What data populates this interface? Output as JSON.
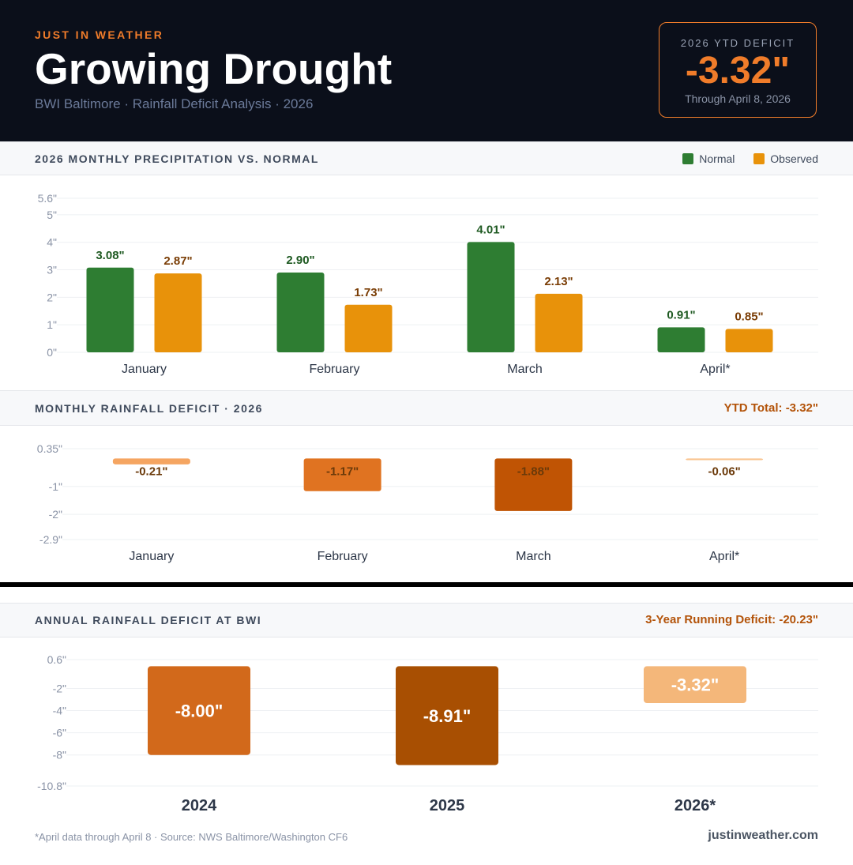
{
  "header": {
    "brand": "JUST IN WEATHER",
    "title": "Growing Drought",
    "subtitle": "BWI Baltimore · Rainfall Deficit Analysis · 2026",
    "ytd": {
      "label": "2026 YTD DEFICIT",
      "value": "-3.32\"",
      "sub": "Through April 8, 2026"
    }
  },
  "sections": {
    "monthly_precip": {
      "title": "2026 MONTHLY PRECIPITATION VS. NORMAL",
      "legend": [
        "Normal",
        "Observed"
      ]
    },
    "monthly_deficit": {
      "title": "MONTHLY RAINFALL DEFICIT · 2026",
      "right": "YTD Total: -3.32\""
    },
    "annual_deficit": {
      "title": "ANNUAL RAINFALL DEFICIT AT BWI",
      "right": "3-Year Running Deficit: -20.23\""
    }
  },
  "colors": {
    "normal": "#2e7d32",
    "observed": "#e8920a",
    "accent": "#f07c2a",
    "deficit_light": "#f5a561",
    "deficit_mid": "#e07321",
    "deficit_dark": "#c05404",
    "deficit_faint": "#f9c48f",
    "annual_2024": "#d2691b",
    "annual_2025": "#a84f02",
    "annual_2026": "#f4b77a"
  },
  "chart_data": [
    {
      "type": "bar",
      "title": "2026 MONTHLY PRECIPITATION VS. NORMAL",
      "categories": [
        "January",
        "February",
        "March",
        "April*"
      ],
      "series": [
        {
          "name": "Normal",
          "values": [
            3.08,
            2.9,
            4.01,
            0.91
          ],
          "labels": [
            "3.08\"",
            "2.90\"",
            "4.01\"",
            "0.91\""
          ]
        },
        {
          "name": "Observed",
          "values": [
            2.87,
            1.73,
            2.13,
            0.85
          ],
          "labels": [
            "2.87\"",
            "1.73\"",
            "2.13\"",
            "0.85\""
          ]
        }
      ],
      "yticks": [
        0,
        1,
        2,
        3,
        4,
        5,
        5.6
      ],
      "ytick_labels": [
        "0\"",
        "1\"",
        "2\"",
        "3\"",
        "4\"",
        "5\"",
        "5.6\""
      ],
      "ylim": [
        0,
        5.6
      ],
      "legend": "top-right"
    },
    {
      "type": "bar",
      "title": "MONTHLY RAINFALL DEFICIT · 2026",
      "categories": [
        "January",
        "February",
        "March",
        "April*"
      ],
      "values": [
        -0.21,
        -1.17,
        -1.88,
        -0.06
      ],
      "labels": [
        "-0.21\"",
        "-1.17\"",
        "-1.88\"",
        "-0.06\""
      ],
      "yticks": [
        0.35,
        -1,
        -2,
        -2.9
      ],
      "ytick_labels": [
        "0.35\"",
        "-1\"",
        "-2\"",
        "-2.9\""
      ],
      "ylim": [
        -2.9,
        0.35
      ]
    },
    {
      "type": "bar",
      "title": "ANNUAL RAINFALL DEFICIT AT BWI",
      "categories": [
        "2024",
        "2025",
        "2026*"
      ],
      "values": [
        -8.0,
        -8.91,
        -3.32
      ],
      "labels": [
        "-8.00\"",
        "-8.91\"",
        "-3.32\""
      ],
      "yticks": [
        0.6,
        -2,
        -4,
        -6,
        -8,
        -10.8
      ],
      "ytick_labels": [
        "0.6\"",
        "-2\"",
        "-4\"",
        "-6\"",
        "-8\"",
        "-10.8\""
      ],
      "ylim": [
        -10.8,
        0.6
      ]
    }
  ],
  "footer": {
    "note": "*April data through April 8 · Source: NWS Baltimore/Washington CF6",
    "site": "justinweather.com"
  }
}
